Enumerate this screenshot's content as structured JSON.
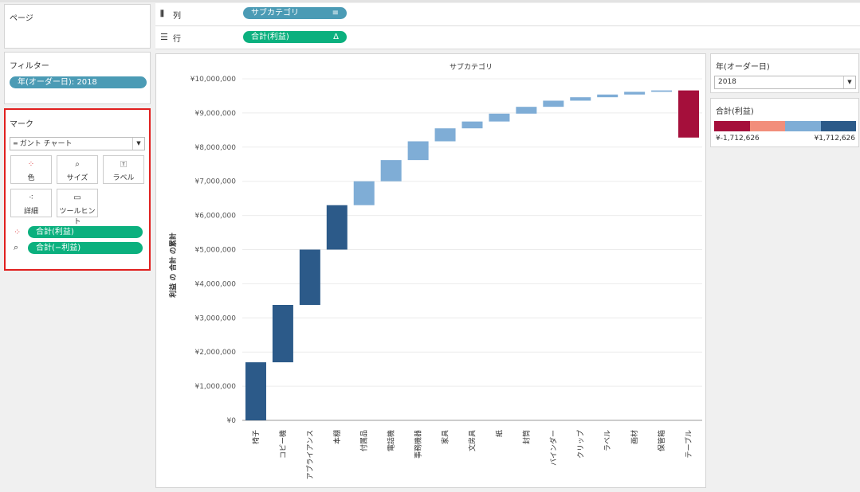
{
  "left": {
    "pages_title": "ページ",
    "filters_title": "フィルター",
    "filter_pill": "年(オーダー日): 2018",
    "marks_title": "マーク",
    "mark_type": "ガント チャート",
    "buttons": {
      "color": "色",
      "size": "サイズ",
      "label": "ラベル",
      "detail": "詳細",
      "tooltip": "ツールヒント"
    },
    "mark_pills": [
      "合計(利益)",
      "合計(−利益)"
    ]
  },
  "shelves": {
    "columns_label": "列",
    "columns_pill": "サブカテゴリ",
    "rows_label": "行",
    "rows_pill": "合計(利益)",
    "rows_pill_icon": "Δ"
  },
  "right": {
    "year_title": "年(オーダー日)",
    "year_value": "2018",
    "legend_title": "合計(利益)",
    "legend_min": "¥-1,712,626",
    "legend_max": "¥1,712,626",
    "legend_colors": [
      "#a50f3b",
      "#f28e7b",
      "#7fadd6",
      "#2c5a89"
    ]
  },
  "chart_data": {
    "type": "bar",
    "title": "サブカテゴリ",
    "ylabel": "利益 の 合計 の累計",
    "ylim": [
      0,
      10000000
    ],
    "ytick_labels": [
      "¥0",
      "¥1,000,000",
      "¥2,000,000",
      "¥3,000,000",
      "¥4,000,000",
      "¥5,000,000",
      "¥6,000,000",
      "¥7,000,000",
      "¥8,000,000",
      "¥9,000,000",
      "¥10,000,000"
    ],
    "categories": [
      "椅子",
      "コピー機",
      "アプライアンス",
      "本棚",
      "付属品",
      "電話機",
      "事務機器",
      "家具",
      "文房具",
      "紙",
      "封筒",
      "バインダー",
      "クリップ",
      "ラベル",
      "画材",
      "保管箱",
      "テーブル"
    ],
    "start": [
      0,
      1700000,
      3380000,
      5000000,
      6300000,
      7000000,
      7620000,
      8170000,
      8550000,
      8750000,
      8980000,
      9180000,
      9360000,
      9460000,
      9540000,
      9620000,
      8280000
    ],
    "end": [
      1700000,
      3380000,
      5000000,
      6300000,
      7000000,
      7620000,
      8170000,
      8550000,
      8750000,
      8980000,
      9180000,
      9360000,
      9460000,
      9540000,
      9620000,
      9660000,
      9660000
    ],
    "colors": [
      "#2c5a89",
      "#2c5a89",
      "#2c5a89",
      "#2c5a89",
      "#7fadd6",
      "#7fadd6",
      "#7fadd6",
      "#7fadd6",
      "#7fadd6",
      "#7fadd6",
      "#7fadd6",
      "#7fadd6",
      "#7fadd6",
      "#7fadd6",
      "#7fadd6",
      "#7fadd6",
      "#a50f3b"
    ]
  }
}
